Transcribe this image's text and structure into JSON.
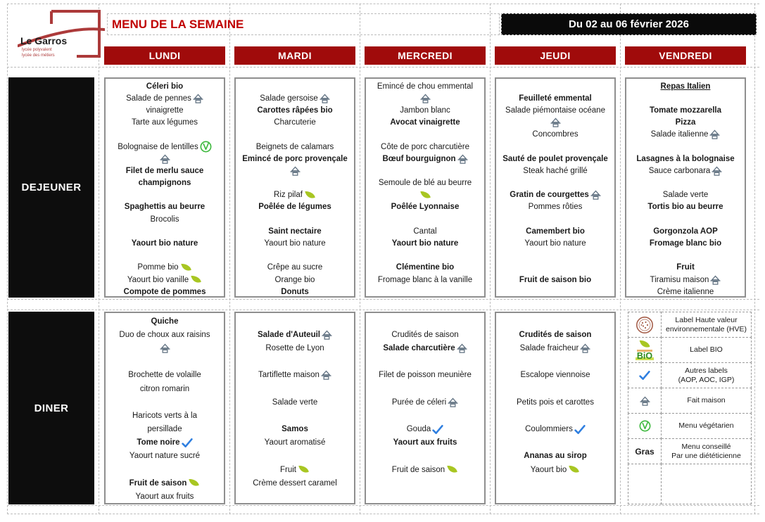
{
  "logo": {
    "name": "Le Garros",
    "subtitle1": "lycée polyvalent",
    "subtitle2": "lycée des métiers"
  },
  "header": {
    "title": "MENU DE LA SEMAINE",
    "date_range": "Du 02 au 06 février 2026"
  },
  "days": [
    "LUNDI",
    "MARDI",
    "MERCREDI",
    "JEUDI",
    "VENDREDI"
  ],
  "rows": {
    "dejeuner_label": "DEJEUNER",
    "diner_label": "DINER"
  },
  "colors": {
    "header_red": "#A00B0B",
    "title_red": "#C00000",
    "banner_black": "#0a0a0a",
    "leaf_green": "#A8C622",
    "check_blue": "#2F7FE0",
    "vegetarian_green": "#3DB83D",
    "fait_maison_gray": "#5F7080",
    "hve_brown": "#A6604C",
    "bio_green": "#2E8B1E"
  },
  "icons": {
    "names": {
      "fm": "fait-maison-icon",
      "leaf": "bio-leaf-icon",
      "veg": "vegetarian-menu-icon",
      "check": "other-label-check-icon",
      "hve": "hve-label-icon",
      "bio": "bio-label-icon"
    },
    "bio_word": "BiO"
  },
  "menu": {
    "dejeuner": [
      [
        {
          "t": "Céleri bio",
          "b": 1
        },
        {
          "t": "Salade de pennes",
          "i": "fm"
        },
        {
          "t": "vinaigrette"
        },
        {
          "t": "Tarte aux légumes"
        },
        {},
        {
          "t": "Bolognaise de lentilles",
          "i": "veg"
        },
        {
          "i": "fm"
        },
        {
          "t": "Filet de merlu sauce",
          "b": 1
        },
        {
          "t": "champignons",
          "b": 1
        },
        {},
        {
          "t": "Spaghettis au beurre",
          "b": 1
        },
        {
          "t": "Brocolis"
        },
        {},
        {
          "t": "Yaourt bio nature",
          "b": 1
        },
        {},
        {
          "t": "Pomme bio",
          "i": "leaf"
        },
        {
          "t": "Yaourt bio vanille",
          "i": "leaf"
        },
        {
          "t": "Compote de pommes",
          "b": 1
        }
      ],
      [
        {},
        {
          "t": "Salade gersoise",
          "i": "fm"
        },
        {
          "t": "Carottes râpées bio",
          "b": 1
        },
        {
          "t": "Charcuterie"
        },
        {},
        {
          "t": "Beignets de calamars"
        },
        {
          "t": "Emincé de porc provençale",
          "b": 1
        },
        {
          "i": "fm"
        },
        {},
        {
          "t": "Riz pilaf",
          "i": "leaf"
        },
        {
          "t": "Poêlée de légumes",
          "b": 1
        },
        {},
        {
          "t": "Saint nectaire",
          "b": 1
        },
        {
          "t": "Yaourt bio nature"
        },
        {},
        {
          "t": "Crêpe au sucre"
        },
        {
          "t": "Orange bio"
        },
        {
          "t": "Donuts",
          "b": 1
        }
      ],
      [
        {
          "t": "Emincé de chou emmental"
        },
        {
          "i": "fm"
        },
        {
          "t": "Jambon blanc"
        },
        {
          "t": "Avocat vinaigrette",
          "b": 1
        },
        {},
        {
          "t": "Côte de porc charcutière"
        },
        {
          "t": "Bœuf bourguignon",
          "b": 1,
          "i": "fm"
        },
        {},
        {
          "t": "Semoule de blé au beurre"
        },
        {
          "i": "leaf"
        },
        {
          "t": "Poêlée Lyonnaise",
          "b": 1
        },
        {},
        {
          "t": "Cantal"
        },
        {
          "t": "Yaourt bio nature",
          "b": 1
        },
        {},
        {
          "t": "Clémentine bio",
          "b": 1
        },
        {
          "t": "Fromage blanc à la vanille"
        }
      ],
      [
        {},
        {
          "t": "Feuilleté emmental",
          "b": 1
        },
        {
          "t": "Salade piémontaise océane"
        },
        {
          "i": "fm"
        },
        {
          "t": "Concombres"
        },
        {},
        {
          "t": "Sauté de poulet provençale",
          "b": 1
        },
        {
          "t": "Steak haché grillé"
        },
        {},
        {
          "t": "Gratin de courgettes",
          "b": 1,
          "i": "fm"
        },
        {
          "t": "Pommes rôties"
        },
        {},
        {
          "t": "Camembert bio",
          "b": 1
        },
        {
          "t": "Yaourt bio nature"
        },
        {},
        {},
        {
          "t": "Fruit de saison bio",
          "b": 1
        }
      ],
      [
        {
          "t": "Repas Italien",
          "b": 1,
          "u": 1
        },
        {},
        {
          "t": "Tomate mozzarella",
          "b": 1
        },
        {
          "t": "Pizza",
          "b": 1
        },
        {
          "t": "Salade italienne",
          "i": "fm"
        },
        {},
        {
          "t": "Lasagnes à la bolognaise",
          "b": 1
        },
        {
          "t": "Sauce carbonara",
          "i": "fm"
        },
        {},
        {
          "t": "Salade verte"
        },
        {
          "t": "Tortis bio au beurre",
          "b": 1
        },
        {},
        {
          "t": "Gorgonzola AOP",
          "b": 1
        },
        {
          "t": "Fromage blanc bio",
          "b": 1
        },
        {},
        {
          "t": "Fruit",
          "b": 1
        },
        {
          "t": "Tiramisu maison",
          "i": "fm"
        },
        {
          "t": "Crème italienne"
        }
      ]
    ],
    "diner": [
      [
        {
          "t": "Quiche",
          "b": 1
        },
        {
          "t": "Duo de choux aux raisins"
        },
        {
          "i": "fm"
        },
        {},
        {
          "t": "Brochette de volaille"
        },
        {
          "t": "citron romarin"
        },
        {},
        {
          "t": "Haricots verts à la"
        },
        {
          "t": "persillade"
        },
        {
          "t": "Tome noire",
          "b": 1,
          "i": "check"
        },
        {
          "t": "Yaourt nature sucré"
        },
        {},
        {
          "t": "Fruit de saison",
          "b": 1,
          "i": "leaf"
        },
        {
          "t": "Yaourt aux fruits"
        }
      ],
      [
        {},
        {
          "t": "Salade d'Auteuil",
          "b": 1,
          "i": "fm"
        },
        {
          "t": "Rosette de Lyon"
        },
        {},
        {
          "t": "Tartiflette maison",
          "i": "fm"
        },
        {},
        {
          "t": "Salade verte"
        },
        {},
        {
          "t": "Samos",
          "b": 1
        },
        {
          "t": "Yaourt aromatisé"
        },
        {},
        {
          "t": "Fruit",
          "i": "leaf"
        },
        {
          "t": "Crème dessert caramel"
        }
      ],
      [
        {},
        {
          "t": "Crudités de saison"
        },
        {
          "t": "Salade charcutière",
          "b": 1,
          "i": "fm"
        },
        {},
        {
          "t": "Filet de poisson meunière"
        },
        {},
        {
          "t": "Purée de céleri",
          "i": "fm"
        },
        {},
        {
          "t": "Gouda",
          "i": "check"
        },
        {
          "t": "Yaourt aux fruits",
          "b": 1
        },
        {},
        {
          "t": "Fruit de saison",
          "i": "leaf"
        }
      ],
      [
        {},
        {
          "t": "Crudités de saison",
          "b": 1
        },
        {
          "t": "Salade fraicheur",
          "i": "fm"
        },
        {},
        {
          "t": "Escalope viennoise"
        },
        {},
        {
          "t": "Petits pois et carottes"
        },
        {},
        {
          "t": "Coulommiers",
          "i": "check"
        },
        {},
        {
          "t": "Ananas au sirop",
          "b": 1
        },
        {
          "t": "Yaourt bio",
          "i": "leaf"
        }
      ]
    ]
  },
  "legend": {
    "items": [
      {
        "icon": "hve",
        "lines": [
          "Label Haute valeur",
          "environnementale (HVE)"
        ]
      },
      {
        "icon": "bio",
        "lines": [
          "Label BIO"
        ]
      },
      {
        "icon": "check",
        "lines": [
          "Autres labels",
          "(AOP, AOC, IGP)"
        ]
      },
      {
        "icon": "fm",
        "lines": [
          "Fait maison"
        ]
      },
      {
        "icon": "veg",
        "lines": [
          "Menu végétarien"
        ]
      },
      {
        "icon": "gras",
        "icon_text": "Gras",
        "lines": [
          "Menu conseillé",
          "Par une diététicienne"
        ]
      }
    ]
  }
}
